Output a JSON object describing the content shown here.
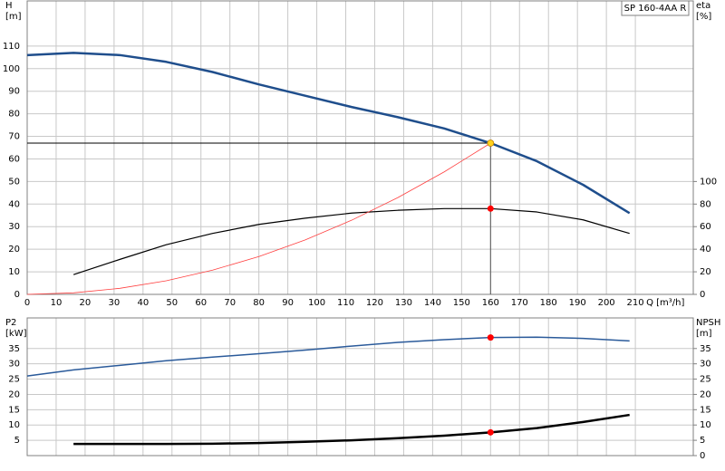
{
  "chart_data": [
    {
      "type": "line",
      "title": "SP 160-4AA R",
      "ylabel": "H",
      "ylabel_unit": "[m]",
      "y2label": "eta",
      "y2label_unit": "[%]",
      "xlabel": "Q [m³/h]",
      "x": [
        0,
        16,
        32,
        48,
        64,
        80,
        96,
        112,
        128,
        144,
        160,
        176,
        192,
        208
      ],
      "xlim": [
        0,
        230
      ],
      "xticks": [
        0,
        10,
        20,
        30,
        40,
        50,
        60,
        70,
        80,
        90,
        100,
        110,
        120,
        130,
        140,
        150,
        160,
        170,
        180,
        190,
        200,
        210
      ],
      "ylim": [
        0,
        130
      ],
      "yticks": [
        0,
        10,
        20,
        30,
        40,
        50,
        60,
        70,
        80,
        90,
        100,
        110
      ],
      "y2lim": [
        0,
        260
      ],
      "y2ticks": [
        0,
        20,
        40,
        60,
        80,
        100
      ],
      "grid": true,
      "series": [
        {
          "color": "#1f4e8c",
          "line_width": 2.5,
          "values": [
            106,
            107,
            106,
            103,
            98.5,
            93,
            88,
            83,
            78.5,
            73.5,
            67,
            59,
            48.5,
            36
          ]
        },
        {
          "color": "#000000",
          "line_width": 1.2,
          "axis": "y2",
          "values": [
            null,
            17.5,
            31,
            44,
            54,
            62,
            67.5,
            72,
            74.5,
            76,
            76,
            73,
            66,
            54
          ]
        },
        {
          "color": "#ff4040",
          "line_width": 0.8,
          "values": [
            0,
            0.67,
            2.68,
            6.03,
            10.72,
            16.75,
            24.12,
            32.83,
            42.88,
            54.27,
            67,
            null,
            null,
            null
          ]
        }
      ],
      "markers": [
        {
          "x": 160,
          "y": 67,
          "color": "#ffd21f"
        },
        {
          "x": 160,
          "y": 76,
          "axis": "y2",
          "color": "#ff0000"
        }
      ]
    },
    {
      "type": "line",
      "ylabel": "P2",
      "ylabel_unit": "[kW]",
      "y2label": "NPSH",
      "y2label_unit": "[m]",
      "x": [
        0,
        16,
        32,
        48,
        64,
        80,
        96,
        112,
        128,
        144,
        160,
        176,
        192,
        208
      ],
      "xlim": [
        0,
        230
      ],
      "xticks": [
        0,
        10,
        20,
        30,
        40,
        50,
        60,
        70,
        80,
        90,
        100,
        110,
        120,
        130,
        140,
        150,
        160,
        170,
        180,
        190,
        200,
        210
      ],
      "ylim": [
        0,
        45
      ],
      "yticks": [
        5,
        10,
        15,
        20,
        25,
        30,
        35
      ],
      "y2lim": [
        0,
        45
      ],
      "y2ticks": [
        0,
        5,
        10,
        15,
        20,
        25,
        30,
        35
      ],
      "grid": true,
      "series": [
        {
          "color": "#2a5a9a",
          "line_width": 1.5,
          "values": [
            26,
            28,
            29.5,
            31,
            32.2,
            33.3,
            34.5,
            35.8,
            37,
            37.9,
            38.6,
            38.7,
            38.3,
            37.5
          ]
        },
        {
          "color": "#000000",
          "line_width": 2.5,
          "axis": "y2",
          "values": [
            null,
            3.8,
            3.8,
            3.8,
            3.9,
            4.1,
            4.5,
            5,
            5.7,
            6.5,
            7.6,
            9,
            11,
            13.3
          ]
        }
      ],
      "markers": [
        {
          "x": 160,
          "y": 38.6,
          "color": "#ff0000"
        },
        {
          "x": 160,
          "y": 7.6,
          "axis": "y2",
          "color": "#ff0000"
        }
      ]
    }
  ]
}
